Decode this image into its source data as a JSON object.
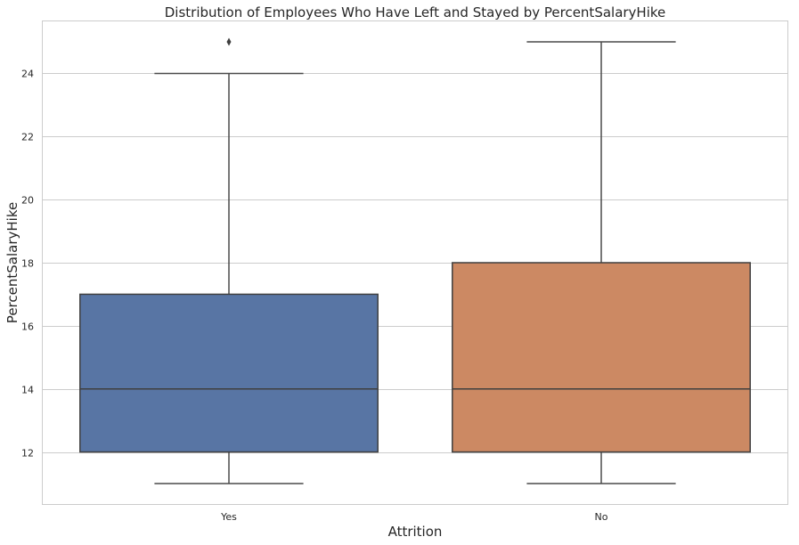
{
  "chart_data": {
    "type": "box",
    "title": "Distribution of Employees Who Have Left and Stayed by PercentSalaryHike",
    "xlabel": "Attrition",
    "ylabel": "PercentSalaryHike",
    "categories": [
      "Yes",
      "No"
    ],
    "ylim": [
      10.35,
      25.65
    ],
    "yticks": [
      12,
      14,
      16,
      18,
      20,
      22,
      24
    ],
    "grid": true,
    "colors": [
      "#5875a4",
      "#cc8963"
    ],
    "boxes": [
      {
        "category": "Yes",
        "whisker_low": 11,
        "q1": 12,
        "median": 14,
        "q3": 17,
        "whisker_high": 24,
        "outliers": [
          25
        ]
      },
      {
        "category": "No",
        "whisker_low": 11,
        "q1": 12,
        "median": 14,
        "q3": 18,
        "whisker_high": 25,
        "outliers": []
      }
    ]
  }
}
